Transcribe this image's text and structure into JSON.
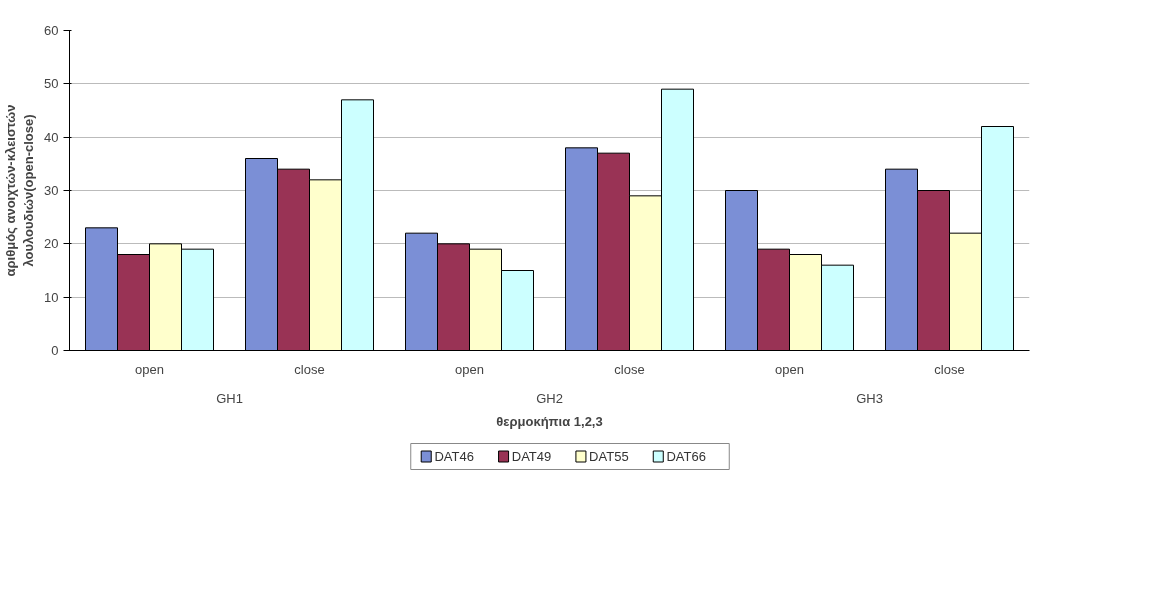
{
  "chart_data": {
    "type": "bar",
    "xlabel": "θερμοκήπια 1,2,3",
    "ylabel": "αριθμός ανοιχτών-κλειστών λουλουδιών(open-close)",
    "categories": [
      "open",
      "close",
      "open",
      "close",
      "open",
      "close"
    ],
    "annotations": [
      "GH1",
      "GH2",
      "GH3"
    ],
    "series": [
      {
        "name": "DAT46",
        "color": "#7b8fd6",
        "values": [
          23,
          36,
          22,
          38,
          30,
          34
        ]
      },
      {
        "name": "DAT49",
        "color": "#993355",
        "values": [
          18,
          34,
          20,
          37,
          19,
          30
        ]
      },
      {
        "name": "DAT55",
        "color": "#ffffcc",
        "values": [
          20,
          32,
          19,
          29,
          18,
          22
        ]
      },
      {
        "name": "DAT66",
        "color": "#ccffff",
        "values": [
          19,
          47,
          15,
          49,
          16,
          42
        ]
      }
    ],
    "ylim": [
      0,
      60
    ],
    "yticks": [
      0,
      10,
      20,
      30,
      40,
      50,
      60
    ],
    "grid": "y",
    "legend": "bottom"
  }
}
